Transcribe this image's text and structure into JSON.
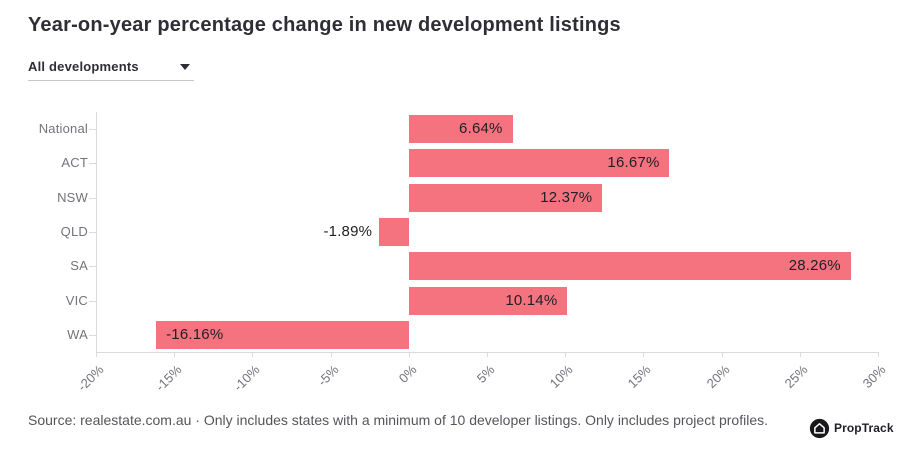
{
  "title": "Year-on-year percentage change in new development listings",
  "filter": {
    "selected": "All developments"
  },
  "chart_data": {
    "type": "bar",
    "orientation": "horizontal",
    "title": "Year-on-year percentage change in new development listings",
    "categories": [
      "National",
      "ACT",
      "NSW",
      "QLD",
      "SA",
      "VIC",
      "WA"
    ],
    "values": [
      6.64,
      16.67,
      12.37,
      -1.89,
      28.26,
      10.14,
      -16.16
    ],
    "value_labels": [
      "6.64%",
      "16.67%",
      "12.37%",
      "-1.89%",
      "28.26%",
      "10.14%",
      "-16.16%"
    ],
    "xlabel": "",
    "ylabel": "",
    "xlim": [
      -20,
      30
    ],
    "x_tick_values": [
      -20,
      -15,
      -10,
      -5,
      0,
      5,
      10,
      15,
      20,
      25,
      30
    ],
    "x_tick_labels": [
      "-20%",
      "-15%",
      "-10%",
      "-5%",
      "0%",
      "5%",
      "10%",
      "15%",
      "20%",
      "25%",
      "30%"
    ],
    "grid": false,
    "legend": false,
    "bar_color": "#f4737e",
    "value_label_color": "#1f1f26",
    "axis_color": "#dadae0",
    "tick_label_color": "#73737d"
  },
  "footer": {
    "source_text": "Source: realestate.com.au · Only includes states with a minimum of 10 developer listings. Only includes project profiles.",
    "brand": "PropTrack"
  }
}
